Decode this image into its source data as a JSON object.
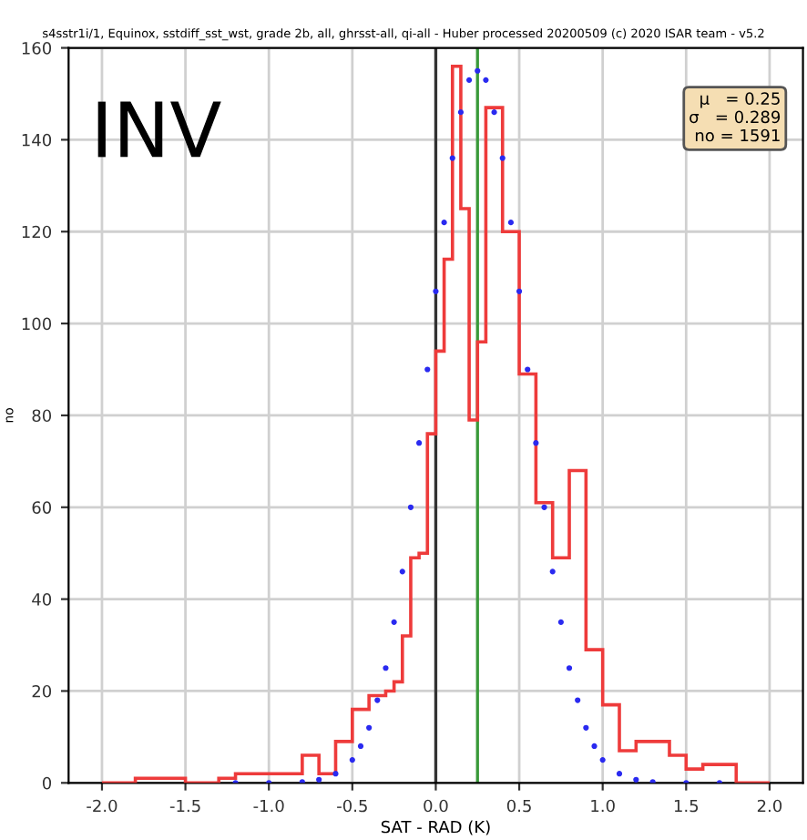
{
  "chart_data": {
    "type": "histogram",
    "title": "s4sstr1i/1, Equinox, sstdiff_sst_wst, grade 2b, all, ghrsst-all, qi-all - Huber processed 20200509 (c) 2020 ISAR team - v5.2",
    "xlabel": "SAT - RAD (K)",
    "ylabel": "no",
    "annotations": [
      "INV",
      "μ   = 0.25\nσ   = 0.289\nno = 1591"
    ],
    "series": [
      {
        "color": "#ee3b3b",
        "bins": [
          -2.0,
          -1.8,
          -1.5,
          -1.3,
          -1.2,
          -0.8,
          -0.7,
          -0.6,
          -0.5,
          -0.4,
          -0.3,
          -0.25,
          -0.2,
          -0.15,
          -0.1,
          -0.05,
          0.0,
          0.05,
          0.1,
          0.15,
          0.2,
          0.25,
          0.3,
          0.4,
          0.5,
          0.6,
          0.7,
          0.8,
          0.9,
          1.0,
          1.1,
          1.2,
          1.4,
          1.5,
          1.6,
          1.8,
          2.0
        ],
        "values": [
          0,
          1,
          0,
          1,
          2,
          6,
          2,
          9,
          16,
          19,
          20,
          22,
          32,
          49,
          50,
          76,
          94,
          114,
          156,
          125,
          79,
          96,
          147,
          120,
          89,
          61,
          49,
          68,
          29,
          17,
          7,
          9,
          6,
          3,
          4,
          0
        ]
      },
      {
        "type": "scatter",
        "color": "#2a2af0",
        "marker": "circle",
        "x": [
          -1.2,
          -1.0,
          -0.8,
          -0.7,
          -0.6,
          -0.5,
          -0.45,
          -0.4,
          -0.35,
          -0.3,
          -0.25,
          -0.2,
          -0.15,
          -0.1,
          -0.05,
          0.0,
          0.05,
          0.1,
          0.15,
          0.2,
          0.25,
          0.3,
          0.35,
          0.4,
          0.45,
          0.5,
          0.55,
          0.6,
          0.65,
          0.7,
          0.75,
          0.8,
          0.85,
          0.9,
          0.95,
          1.0,
          1.1,
          1.2,
          1.3,
          1.5,
          1.7
        ],
        "values": [
          0,
          0,
          0.2,
          0.7,
          2,
          5,
          8,
          12,
          18,
          25,
          35,
          46,
          60,
          74,
          90,
          107,
          122,
          136,
          146,
          153,
          155,
          153,
          146,
          136,
          122,
          107,
          90,
          74,
          60,
          46,
          35,
          25,
          18,
          12,
          8,
          5,
          2,
          0.7,
          0.2,
          0,
          0
        ]
      }
    ],
    "ref_lines": [
      {
        "axis": "x",
        "value": 0,
        "color": "#333333"
      },
      {
        "axis": "x",
        "value": 0.25,
        "color": "#3a9a3a"
      }
    ],
    "xlim": [
      -2.2,
      2.2
    ],
    "xticks": [
      {
        "value": -2,
        "label": "-2.0"
      },
      -1.5,
      {
        "value": -1,
        "label": "-1.0"
      },
      -0.5,
      {
        "value": 0,
        "label": "0.0"
      },
      0.5,
      {
        "value": 1,
        "label": "1.0"
      },
      1.5,
      {
        "value": 2,
        "label": "2.0"
      }
    ],
    "ylim": [
      0,
      160
    ],
    "yticks": [
      0,
      20,
      40,
      60,
      80,
      100,
      120,
      140,
      160
    ],
    "grid": true
  }
}
